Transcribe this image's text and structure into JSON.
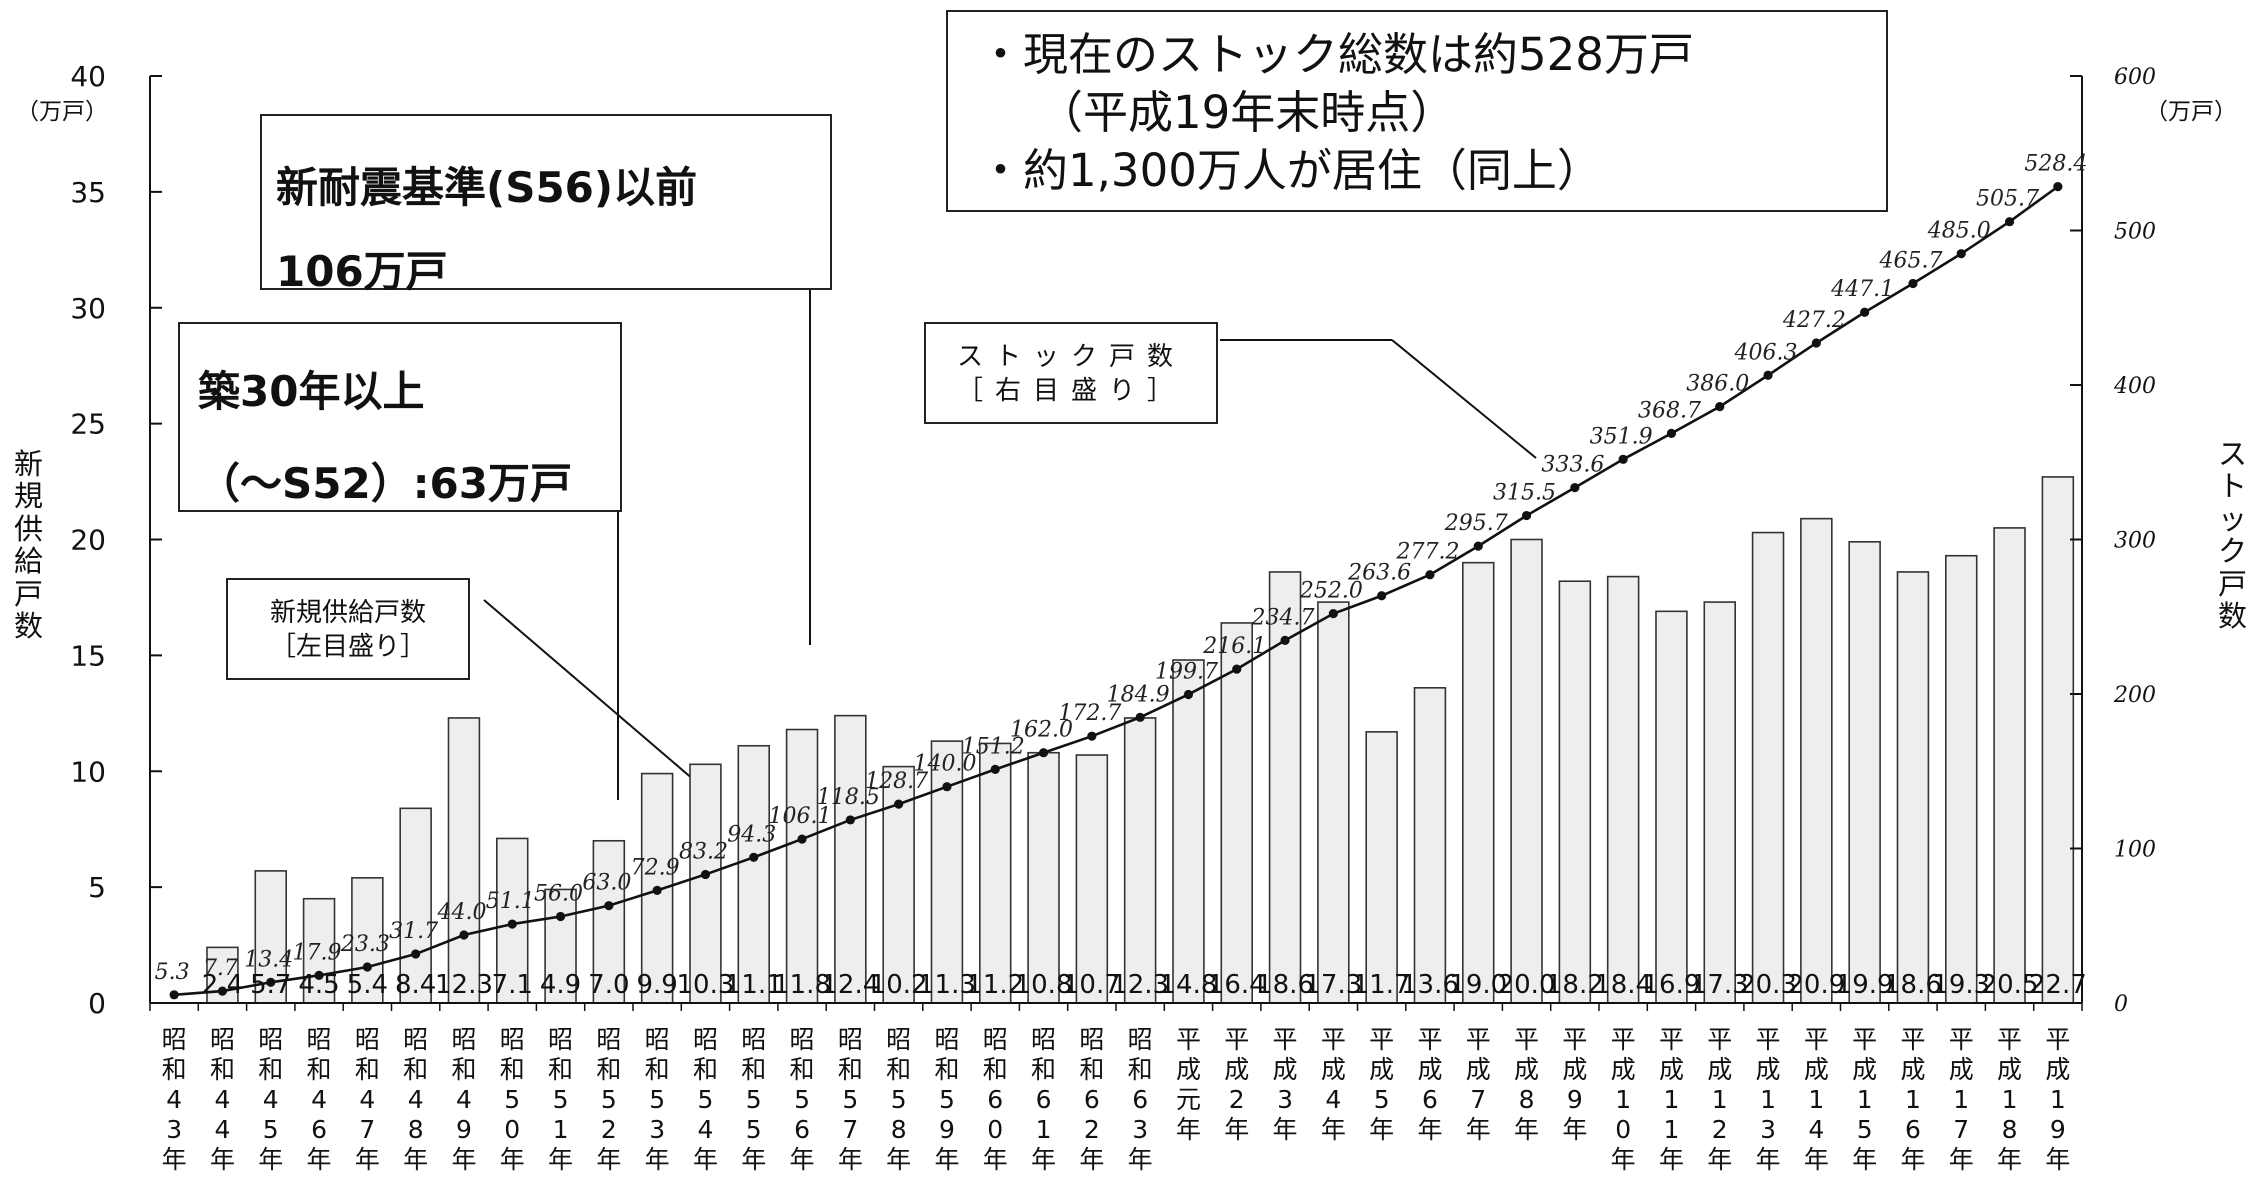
{
  "chart_data": {
    "type": "bar",
    "categories": [
      "昭和43年",
      "昭和44年",
      "昭和45年",
      "昭和46年",
      "昭和47年",
      "昭和48年",
      "昭和49年",
      "昭和50年",
      "昭和51年",
      "昭和52年",
      "昭和53年",
      "昭和54年",
      "昭和55年",
      "昭和56年",
      "昭和57年",
      "昭和58年",
      "昭和59年",
      "昭和60年",
      "昭和61年",
      "昭和62年",
      "昭和63年",
      "平成元年",
      "平成2年",
      "平成3年",
      "平成4年",
      "平成5年",
      "平成6年",
      "平成7年",
      "平成8年",
      "平成9年",
      "平成10年",
      "平成11年",
      "平成12年",
      "平成13年",
      "平成14年",
      "平成15年",
      "平成16年",
      "平成17年",
      "平成18年",
      "平成19年"
    ],
    "category_chars": [
      [
        "昭",
        "和",
        "4",
        "3",
        "年"
      ],
      [
        "昭",
        "和",
        "4",
        "4",
        "年"
      ],
      [
        "昭",
        "和",
        "4",
        "5",
        "年"
      ],
      [
        "昭",
        "和",
        "4",
        "6",
        "年"
      ],
      [
        "昭",
        "和",
        "4",
        "7",
        "年"
      ],
      [
        "昭",
        "和",
        "4",
        "8",
        "年"
      ],
      [
        "昭",
        "和",
        "4",
        "9",
        "年"
      ],
      [
        "昭",
        "和",
        "5",
        "0",
        "年"
      ],
      [
        "昭",
        "和",
        "5",
        "1",
        "年"
      ],
      [
        "昭",
        "和",
        "5",
        "2",
        "年"
      ],
      [
        "昭",
        "和",
        "5",
        "3",
        "年"
      ],
      [
        "昭",
        "和",
        "5",
        "4",
        "年"
      ],
      [
        "昭",
        "和",
        "5",
        "5",
        "年"
      ],
      [
        "昭",
        "和",
        "5",
        "6",
        "年"
      ],
      [
        "昭",
        "和",
        "5",
        "7",
        "年"
      ],
      [
        "昭",
        "和",
        "5",
        "8",
        "年"
      ],
      [
        "昭",
        "和",
        "5",
        "9",
        "年"
      ],
      [
        "昭",
        "和",
        "6",
        "0",
        "年"
      ],
      [
        "昭",
        "和",
        "6",
        "1",
        "年"
      ],
      [
        "昭",
        "和",
        "6",
        "2",
        "年"
      ],
      [
        "昭",
        "和",
        "6",
        "3",
        "年"
      ],
      [
        "平",
        "成",
        "元",
        "年"
      ],
      [
        "平",
        "成",
        "2",
        "年"
      ],
      [
        "平",
        "成",
        "3",
        "年"
      ],
      [
        "平",
        "成",
        "4",
        "年"
      ],
      [
        "平",
        "成",
        "5",
        "年"
      ],
      [
        "平",
        "成",
        "6",
        "年"
      ],
      [
        "平",
        "成",
        "7",
        "年"
      ],
      [
        "平",
        "成",
        "8",
        "年"
      ],
      [
        "平",
        "成",
        "9",
        "年"
      ],
      [
        "平",
        "成",
        "1",
        "0",
        "年"
      ],
      [
        "平",
        "成",
        "1",
        "1",
        "年"
      ],
      [
        "平",
        "成",
        "1",
        "2",
        "年"
      ],
      [
        "平",
        "成",
        "1",
        "3",
        "年"
      ],
      [
        "平",
        "成",
        "1",
        "4",
        "年"
      ],
      [
        "平",
        "成",
        "1",
        "5",
        "年"
      ],
      [
        "平",
        "成",
        "1",
        "6",
        "年"
      ],
      [
        "平",
        "成",
        "1",
        "7",
        "年"
      ],
      [
        "平",
        "成",
        "1",
        "8",
        "年"
      ],
      [
        "平",
        "成",
        "1",
        "9",
        "年"
      ]
    ],
    "series": [
      {
        "name": "新規供給戸数",
        "axis": "left",
        "kind": "bar",
        "values": [
          0,
          2.4,
          5.7,
          4.5,
          5.4,
          8.4,
          12.3,
          7.1,
          4.9,
          7.0,
          9.9,
          10.3,
          11.1,
          11.8,
          12.4,
          10.2,
          11.3,
          11.2,
          10.8,
          10.7,
          12.3,
          14.8,
          16.4,
          18.6,
          17.3,
          11.7,
          13.6,
          19.0,
          20.0,
          18.2,
          18.4,
          16.9,
          17.3,
          20.3,
          20.9,
          19.9,
          18.6,
          19.3,
          20.5,
          22.7
        ],
        "labels": [
          "",
          "2.4",
          "5.7",
          "4.5",
          "5.4",
          "8.4",
          "12.3",
          "7.1",
          "4.9",
          "7.0",
          "9.9",
          "10.3",
          "11.1",
          "11.8",
          "12.4",
          "10.2",
          "11.3",
          "11.2",
          "10.8",
          "10.7",
          "12.3",
          "14.8",
          "16.4",
          "18.6",
          "17.3",
          "11.7",
          "13.6",
          "19.0",
          "20.0",
          "18.2",
          "18.4",
          "16.9",
          "17.3",
          "20.3",
          "20.9",
          "19.9",
          "18.6",
          "19.3",
          "20.5",
          "22.7"
        ]
      },
      {
        "name": "ストック戸数",
        "axis": "right",
        "kind": "line",
        "values": [
          5.3,
          7.7,
          13.4,
          17.9,
          23.3,
          31.7,
          44.0,
          51.1,
          56.0,
          63.0,
          72.9,
          83.2,
          94.3,
          106.1,
          118.5,
          128.7,
          140.0,
          151.2,
          162.0,
          172.7,
          184.9,
          199.7,
          216.1,
          234.7,
          252.0,
          263.6,
          277.2,
          295.7,
          315.5,
          333.6,
          351.9,
          368.7,
          386.0,
          406.3,
          427.2,
          447.1,
          465.7,
          485.0,
          505.7,
          528.4
        ],
        "labels": [
          "5.3",
          "7.7",
          "13.4",
          "17.9",
          "23.3",
          "31.7",
          "44.0",
          "51.1",
          "56.0",
          "63.0",
          "72.9",
          "83.2",
          "94.3",
          "106.1",
          "118.5",
          "128.7",
          "140.0",
          "151.2",
          "162.0",
          "172.7",
          "184.9",
          "199.7",
          "216.1",
          "234.7",
          "252.0",
          "263.6",
          "277.2",
          "295.7",
          "315.5",
          "333.6",
          "351.9",
          "368.7",
          "386.0",
          "406.3",
          "427.2",
          "447.1",
          "465.7",
          "485.0",
          "505.7",
          "528.4"
        ]
      }
    ],
    "left_axis": {
      "label_chars": [
        "新",
        "規",
        "供",
        "給",
        "戸",
        "数"
      ],
      "unit": "（万戸）",
      "ylim": [
        0,
        40
      ],
      "ticks": [
        0,
        5,
        10,
        15,
        20,
        25,
        30,
        35,
        40
      ]
    },
    "right_axis": {
      "label_chars": [
        "ス",
        "ト",
        "ッ",
        "ク",
        "戸",
        "数"
      ],
      "unit": "（万戸）",
      "ylim": [
        0,
        600
      ],
      "ticks": [
        0,
        100,
        200,
        300,
        400,
        500,
        600
      ]
    },
    "colors": {
      "bar_fill": "#eeeeee",
      "bar_stroke": "#333333",
      "line": "#111111"
    }
  },
  "annotations": {
    "info_box": {
      "line1": "・現在のストック総数は約528万戸",
      "line2": "（平成19年末時点）",
      "line3": "・約1,300万人が居住（同上）"
    },
    "box_s56": {
      "line1": "新耐震基準(S56)以前",
      "line2": "106万戸"
    },
    "box_30yr": {
      "line1": "築30年以上",
      "line2": "（～S52）:63万戸"
    },
    "legend_bar": {
      "line1": "新規供給戸数",
      "line2": "［左目盛り］"
    },
    "legend_line": {
      "line1": "ストック戸数",
      "line2": "［右目盛り］"
    }
  }
}
